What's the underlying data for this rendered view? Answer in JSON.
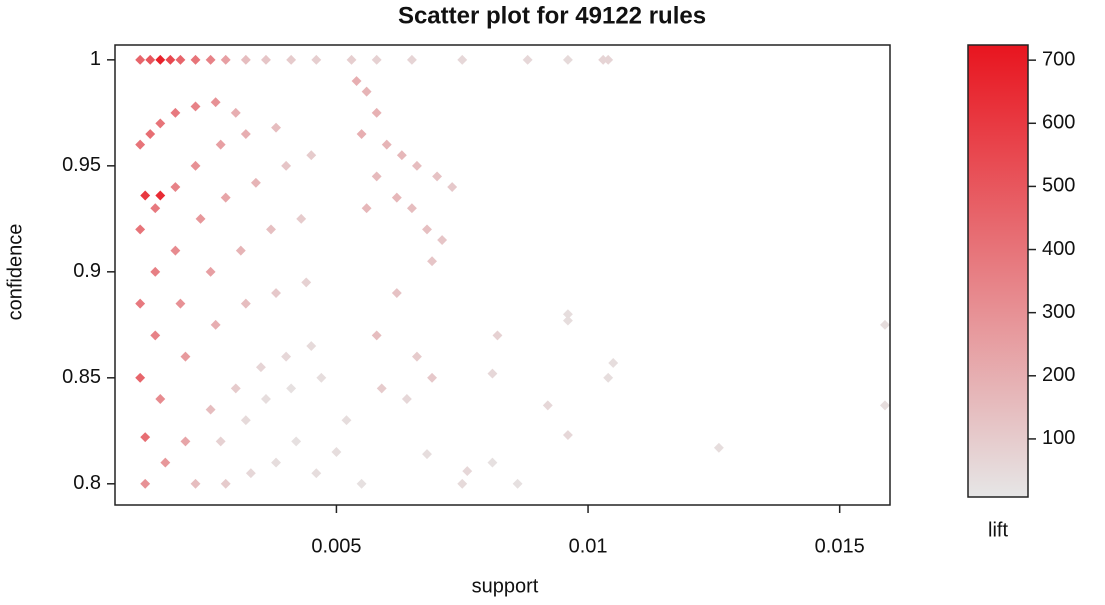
{
  "chart_data": {
    "type": "scatter",
    "title": "Scatter plot for 49122 rules",
    "x_label": "support",
    "y_label": "confidence",
    "xlim": [
      0.0006,
      0.016
    ],
    "ylim": [
      0.79,
      1.007
    ],
    "xticks": [
      0.005,
      0.01,
      0.015
    ],
    "yticks": [
      0.8,
      0.85,
      0.9,
      0.95,
      1
    ],
    "x": [
      0.0011,
      0.0013,
      0.0015,
      0.0017,
      0.0019,
      0.0022,
      0.0025,
      0.0028,
      0.0032,
      0.0036,
      0.0041,
      0.0046,
      0.0053,
      0.0058,
      0.0065,
      0.0075,
      0.0088,
      0.0096,
      0.0103,
      0.0104,
      0.0011,
      0.0013,
      0.0015,
      0.0018,
      0.0022,
      0.0026,
      0.003,
      0.0012,
      0.0015,
      0.0011,
      0.0014,
      0.0018,
      0.0022,
      0.0027,
      0.0032,
      0.0038,
      0.0011,
      0.0014,
      0.0018,
      0.0023,
      0.0028,
      0.0034,
      0.004,
      0.0045,
      0.0011,
      0.0014,
      0.0019,
      0.0025,
      0.0031,
      0.0037,
      0.0043,
      0.0012,
      0.0015,
      0.002,
      0.0026,
      0.0032,
      0.0038,
      0.0044,
      0.0012,
      0.0016,
      0.002,
      0.0025,
      0.003,
      0.0035,
      0.004,
      0.0045,
      0.0022,
      0.0028,
      0.0033,
      0.0038,
      0.0042,
      0.0046,
      0.005,
      0.0055,
      0.0027,
      0.0032,
      0.0036,
      0.0041,
      0.0047,
      0.0052,
      0.0054,
      0.0056,
      0.0058,
      0.0055,
      0.006,
      0.0063,
      0.0058,
      0.0062,
      0.0065,
      0.0068,
      0.0071,
      0.0056,
      0.0066,
      0.007,
      0.0073,
      0.0069,
      0.0062,
      0.0058,
      0.0066,
      0.0069,
      0.0059,
      0.0064,
      0.0082,
      0.0081,
      0.0096,
      0.0096,
      0.0105,
      0.0104,
      0.0092,
      0.0096,
      0.0126,
      0.0159,
      0.0159,
      0.0075,
      0.0076,
      0.0068,
      0.0081,
      0.0086
    ],
    "y": [
      1,
      1,
      1,
      1,
      1,
      1,
      1,
      1,
      1,
      1,
      1,
      1,
      1,
      1,
      1,
      1,
      1,
      1,
      1,
      1,
      0.96,
      0.965,
      0.97,
      0.975,
      0.978,
      0.98,
      0.975,
      0.936,
      0.936,
      0.92,
      0.93,
      0.94,
      0.95,
      0.96,
      0.965,
      0.968,
      0.885,
      0.9,
      0.91,
      0.925,
      0.935,
      0.942,
      0.95,
      0.955,
      0.85,
      0.87,
      0.885,
      0.9,
      0.91,
      0.92,
      0.925,
      0.822,
      0.84,
      0.86,
      0.875,
      0.885,
      0.89,
      0.895,
      0.8,
      0.81,
      0.82,
      0.835,
      0.845,
      0.855,
      0.86,
      0.865,
      0.8,
      0.8,
      0.805,
      0.81,
      0.82,
      0.805,
      0.815,
      0.8,
      0.82,
      0.83,
      0.84,
      0.845,
      0.85,
      0.83,
      0.99,
      0.985,
      0.975,
      0.965,
      0.96,
      0.955,
      0.945,
      0.935,
      0.93,
      0.92,
      0.915,
      0.93,
      0.95,
      0.945,
      0.94,
      0.905,
      0.89,
      0.87,
      0.86,
      0.85,
      0.845,
      0.84,
      0.87,
      0.852,
      0.88,
      0.877,
      0.857,
      0.85,
      0.837,
      0.823,
      0.817,
      0.875,
      0.837,
      0.8,
      0.806,
      0.814,
      0.81,
      0.8
    ],
    "lift": [
      450,
      500,
      680,
      550,
      450,
      400,
      350,
      250,
      150,
      120,
      100,
      90,
      90,
      80,
      70,
      60,
      60,
      50,
      70,
      70,
      400,
      420,
      400,
      380,
      350,
      300,
      200,
      600,
      650,
      400,
      380,
      350,
      300,
      250,
      200,
      150,
      380,
      360,
      320,
      280,
      230,
      180,
      120,
      100,
      450,
      350,
      300,
      250,
      180,
      140,
      100,
      420,
      320,
      270,
      200,
      150,
      110,
      80,
      300,
      280,
      230,
      150,
      100,
      70,
      60,
      50,
      150,
      100,
      60,
      40,
      30,
      40,
      40,
      30,
      80,
      50,
      40,
      30,
      40,
      40,
      200,
      180,
      190,
      200,
      180,
      170,
      160,
      170,
      150,
      140,
      120,
      170,
      150,
      130,
      110,
      120,
      130,
      150,
      100,
      110,
      100,
      60,
      80,
      60,
      40,
      40,
      40,
      40,
      60,
      60,
      40,
      40,
      40,
      50,
      60,
      40,
      30,
      30
    ],
    "colorbar": {
      "label": "lift",
      "lim": [
        8,
        724
      ],
      "ticks": [
        100,
        200,
        300,
        400,
        500,
        600,
        700
      ],
      "colors": [
        "#e6e6e6",
        "#e8151f"
      ]
    }
  }
}
